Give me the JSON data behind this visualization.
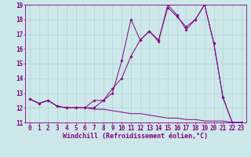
{
  "xlabel": "Windchill (Refroidissement éolien,°C)",
  "xlim": [
    -0.5,
    23.5
  ],
  "ylim": [
    11,
    19
  ],
  "yticks": [
    11,
    12,
    13,
    14,
    15,
    16,
    17,
    18,
    19
  ],
  "xticks": [
    0,
    1,
    2,
    3,
    4,
    5,
    6,
    7,
    8,
    9,
    10,
    11,
    12,
    13,
    14,
    15,
    16,
    17,
    18,
    19,
    20,
    21,
    22,
    23
  ],
  "background_color": "#cce8e8",
  "line_color": "#880088",
  "grid_color": "#aacccc",
  "line1_x": [
    0,
    1,
    2,
    3,
    4,
    5,
    6,
    7,
    8,
    9,
    10,
    11,
    12,
    13,
    14,
    15,
    16,
    17,
    18,
    19,
    20,
    21,
    22,
    23
  ],
  "line1_y": [
    12.6,
    12.3,
    12.5,
    12.1,
    12.0,
    12.0,
    12.0,
    11.9,
    11.9,
    11.8,
    11.7,
    11.6,
    11.6,
    11.5,
    11.4,
    11.3,
    11.3,
    11.2,
    11.2,
    11.1,
    11.1,
    11.1,
    11.0,
    11.0
  ],
  "line2_x": [
    0,
    1,
    2,
    3,
    4,
    5,
    6,
    7,
    8,
    9,
    10,
    11,
    12,
    13,
    14,
    15,
    16,
    17,
    18,
    19,
    20,
    21,
    22,
    23
  ],
  "line2_y": [
    12.6,
    12.3,
    12.5,
    12.1,
    12.0,
    12.0,
    12.0,
    12.5,
    12.5,
    13.3,
    14.0,
    15.5,
    16.6,
    17.2,
    16.6,
    18.8,
    18.2,
    17.5,
    18.0,
    19.0,
    16.4,
    12.7,
    11.0,
    11.0
  ],
  "line3_x": [
    0,
    1,
    2,
    3,
    4,
    5,
    6,
    7,
    8,
    9,
    10,
    11,
    12,
    13,
    14,
    15,
    16,
    17,
    18,
    19,
    20,
    21,
    22,
    23
  ],
  "line3_y": [
    12.6,
    12.3,
    12.5,
    12.1,
    12.0,
    12.0,
    12.0,
    12.0,
    12.5,
    13.0,
    15.2,
    18.0,
    16.6,
    17.2,
    16.5,
    19.0,
    18.3,
    17.3,
    18.0,
    19.0,
    16.4,
    12.7,
    11.0,
    11.0
  ],
  "fontsize_xlabel": 6,
  "fontsize_ticks": 5.5
}
